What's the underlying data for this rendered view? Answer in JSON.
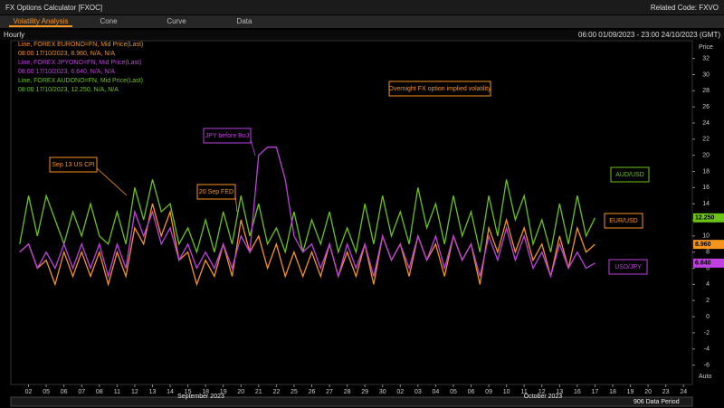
{
  "ui": {
    "app_title": "FX Options Calculator [FXOC]",
    "related": "Related Code: FXVO",
    "tabs": [
      "Volatility Analysis",
      "Cone",
      "Curve",
      "Data"
    ],
    "interval": "Hourly",
    "range": "06:00 01/09/2023 - 23:00 24/10/2023 (GMT)",
    "auto": "Auto",
    "data_period": "906 Data Period"
  },
  "chart_data": {
    "type": "line",
    "y_label": "Price",
    "months": [
      "September 2023",
      "October 2023"
    ],
    "xlim": [
      -1,
      37.5
    ],
    "ylim": [
      -8.4,
      34.2
    ],
    "xticks": [
      {
        "value": 0,
        "label": "02"
      },
      {
        "value": 1,
        "label": "05"
      },
      {
        "value": 2,
        "label": "06"
      },
      {
        "value": 3,
        "label": "07"
      },
      {
        "value": 4,
        "label": "08"
      },
      {
        "value": 5,
        "label": "11"
      },
      {
        "value": 6,
        "label": "12"
      },
      {
        "value": 7,
        "label": "13"
      },
      {
        "value": 8,
        "label": "14"
      },
      {
        "value": 9,
        "label": "15"
      },
      {
        "value": 10,
        "label": "18"
      },
      {
        "value": 11,
        "label": "19"
      },
      {
        "value": 12,
        "label": "20"
      },
      {
        "value": 13,
        "label": "21"
      },
      {
        "value": 14,
        "label": "22"
      },
      {
        "value": 15,
        "label": "25"
      },
      {
        "value": 16,
        "label": "26"
      },
      {
        "value": 17,
        "label": "27"
      },
      {
        "value": 18,
        "label": "28"
      },
      {
        "value": 19,
        "label": "29"
      },
      {
        "value": 20,
        "label": "30"
      },
      {
        "value": 21,
        "label": "02"
      },
      {
        "value": 22,
        "label": "03"
      },
      {
        "value": 23,
        "label": "04"
      },
      {
        "value": 24,
        "label": "05"
      },
      {
        "value": 25,
        "label": "06"
      },
      {
        "value": 26,
        "label": "09"
      },
      {
        "value": 27,
        "label": "10"
      },
      {
        "value": 28,
        "label": "11"
      },
      {
        "value": 29,
        "label": "12"
      },
      {
        "value": 30,
        "label": "13"
      },
      {
        "value": 31,
        "label": "16"
      },
      {
        "value": 32,
        "label": "17"
      },
      {
        "value": 33,
        "label": "18"
      },
      {
        "value": 34,
        "label": "19"
      },
      {
        "value": 35,
        "label": "20"
      },
      {
        "value": 36,
        "label": "23"
      },
      {
        "value": 37,
        "label": "24"
      }
    ],
    "yticks": [
      -6,
      -4,
      -2,
      0,
      2,
      4,
      6,
      8,
      10,
      12,
      14,
      16,
      18,
      20,
      22,
      24,
      26,
      28,
      30,
      32
    ],
    "x": [
      -0.5,
      0,
      0.5,
      1,
      1.5,
      2,
      2.5,
      3,
      3.5,
      4,
      4.5,
      5,
      5.5,
      6,
      6.5,
      7,
      7.5,
      8,
      8.5,
      9,
      9.5,
      10,
      10.5,
      11,
      11.5,
      12,
      12.5,
      13,
      13.5,
      14,
      14.5,
      15,
      15.5,
      16,
      16.5,
      17,
      17.5,
      18,
      18.5,
      19,
      19.5,
      20,
      20.5,
      21,
      21.5,
      22,
      22.5,
      23,
      23.5,
      24,
      24.5,
      25,
      25.5,
      26,
      26.5,
      27,
      27.5,
      28,
      28.5,
      29,
      29.5,
      30,
      30.5,
      31,
      31.5,
      32
    ],
    "series": [
      {
        "name": "Line, FOREX EURONO=FN, Mid Price(Last)",
        "detail": "08:00 17/10/2023, 8.960, N/A, N/A",
        "label": "EUR/USD",
        "color": "#f7941d",
        "value_label": "8.960",
        "values": [
          8,
          9,
          6,
          7,
          4,
          8,
          5,
          8,
          5,
          8,
          4,
          8,
          5,
          11,
          9,
          14,
          10,
          13,
          7,
          8,
          4,
          7,
          5,
          9,
          5,
          12,
          8,
          10,
          6,
          9,
          5,
          8,
          5,
          8,
          5,
          9,
          5,
          8,
          5,
          9,
          4,
          10,
          7,
          9,
          5,
          10,
          7,
          9,
          5,
          10,
          7,
          9,
          4,
          11,
          8,
          12,
          8,
          11,
          7,
          9,
          5,
          10,
          6,
          11,
          8,
          8.96
        ]
      },
      {
        "name": "Line, FOREX JPYONO=FN, Mid Price(Last)",
        "detail": "08:00 17/10/2023, 6.640, N/A, N/A",
        "label": "USD/JPY",
        "color": "#c040e0",
        "value_label": "6.640",
        "values": [
          8,
          9,
          6,
          8,
          6,
          9,
          6,
          9,
          6,
          9,
          5,
          9,
          6,
          13,
          10,
          13,
          9,
          11,
          7,
          9,
          6,
          8,
          6,
          9,
          6,
          10,
          8,
          20,
          21,
          21,
          17,
          10,
          8,
          9,
          6,
          9,
          5,
          9,
          6,
          9,
          5,
          10,
          7,
          9,
          6,
          10,
          7,
          10,
          6,
          10,
          7,
          9,
          5,
          10,
          7,
          11,
          7,
          10,
          6,
          8,
          5,
          9,
          6,
          8,
          6,
          6.64
        ]
      },
      {
        "name": "Line, FOREX AUDONO=FN, Mid Price(Last)",
        "detail": "08:00 17/10/2023, 12.250, N/A, N/A",
        "label": "AUD/USD",
        "color": "#6cc416",
        "value_label": "12.250",
        "values": [
          9,
          15,
          10,
          15,
          12,
          9,
          13,
          10,
          14,
          10,
          9,
          13,
          9,
          16,
          12,
          17,
          13,
          14,
          9,
          11,
          8,
          12,
          8,
          13,
          9,
          15,
          10,
          14,
          9,
          11,
          8,
          13,
          8,
          12,
          9,
          13,
          8,
          11,
          8,
          14,
          9,
          15,
          10,
          13,
          9,
          16,
          11,
          14,
          9,
          15,
          10,
          13,
          8,
          15,
          10,
          17,
          12,
          15,
          9,
          12,
          8,
          14,
          9,
          15,
          10,
          12.25
        ]
      }
    ],
    "annotations": [
      {
        "text": "Overnight FX option implied volatility",
        "color": "#f7941d"
      },
      {
        "text": "JPY before BoJ",
        "color": "#c040e0"
      },
      {
        "text": "Sep 13 US CPI",
        "color": "#f7941d"
      },
      {
        "text": "20 Sep FED",
        "color": "#f7941d"
      }
    ]
  }
}
